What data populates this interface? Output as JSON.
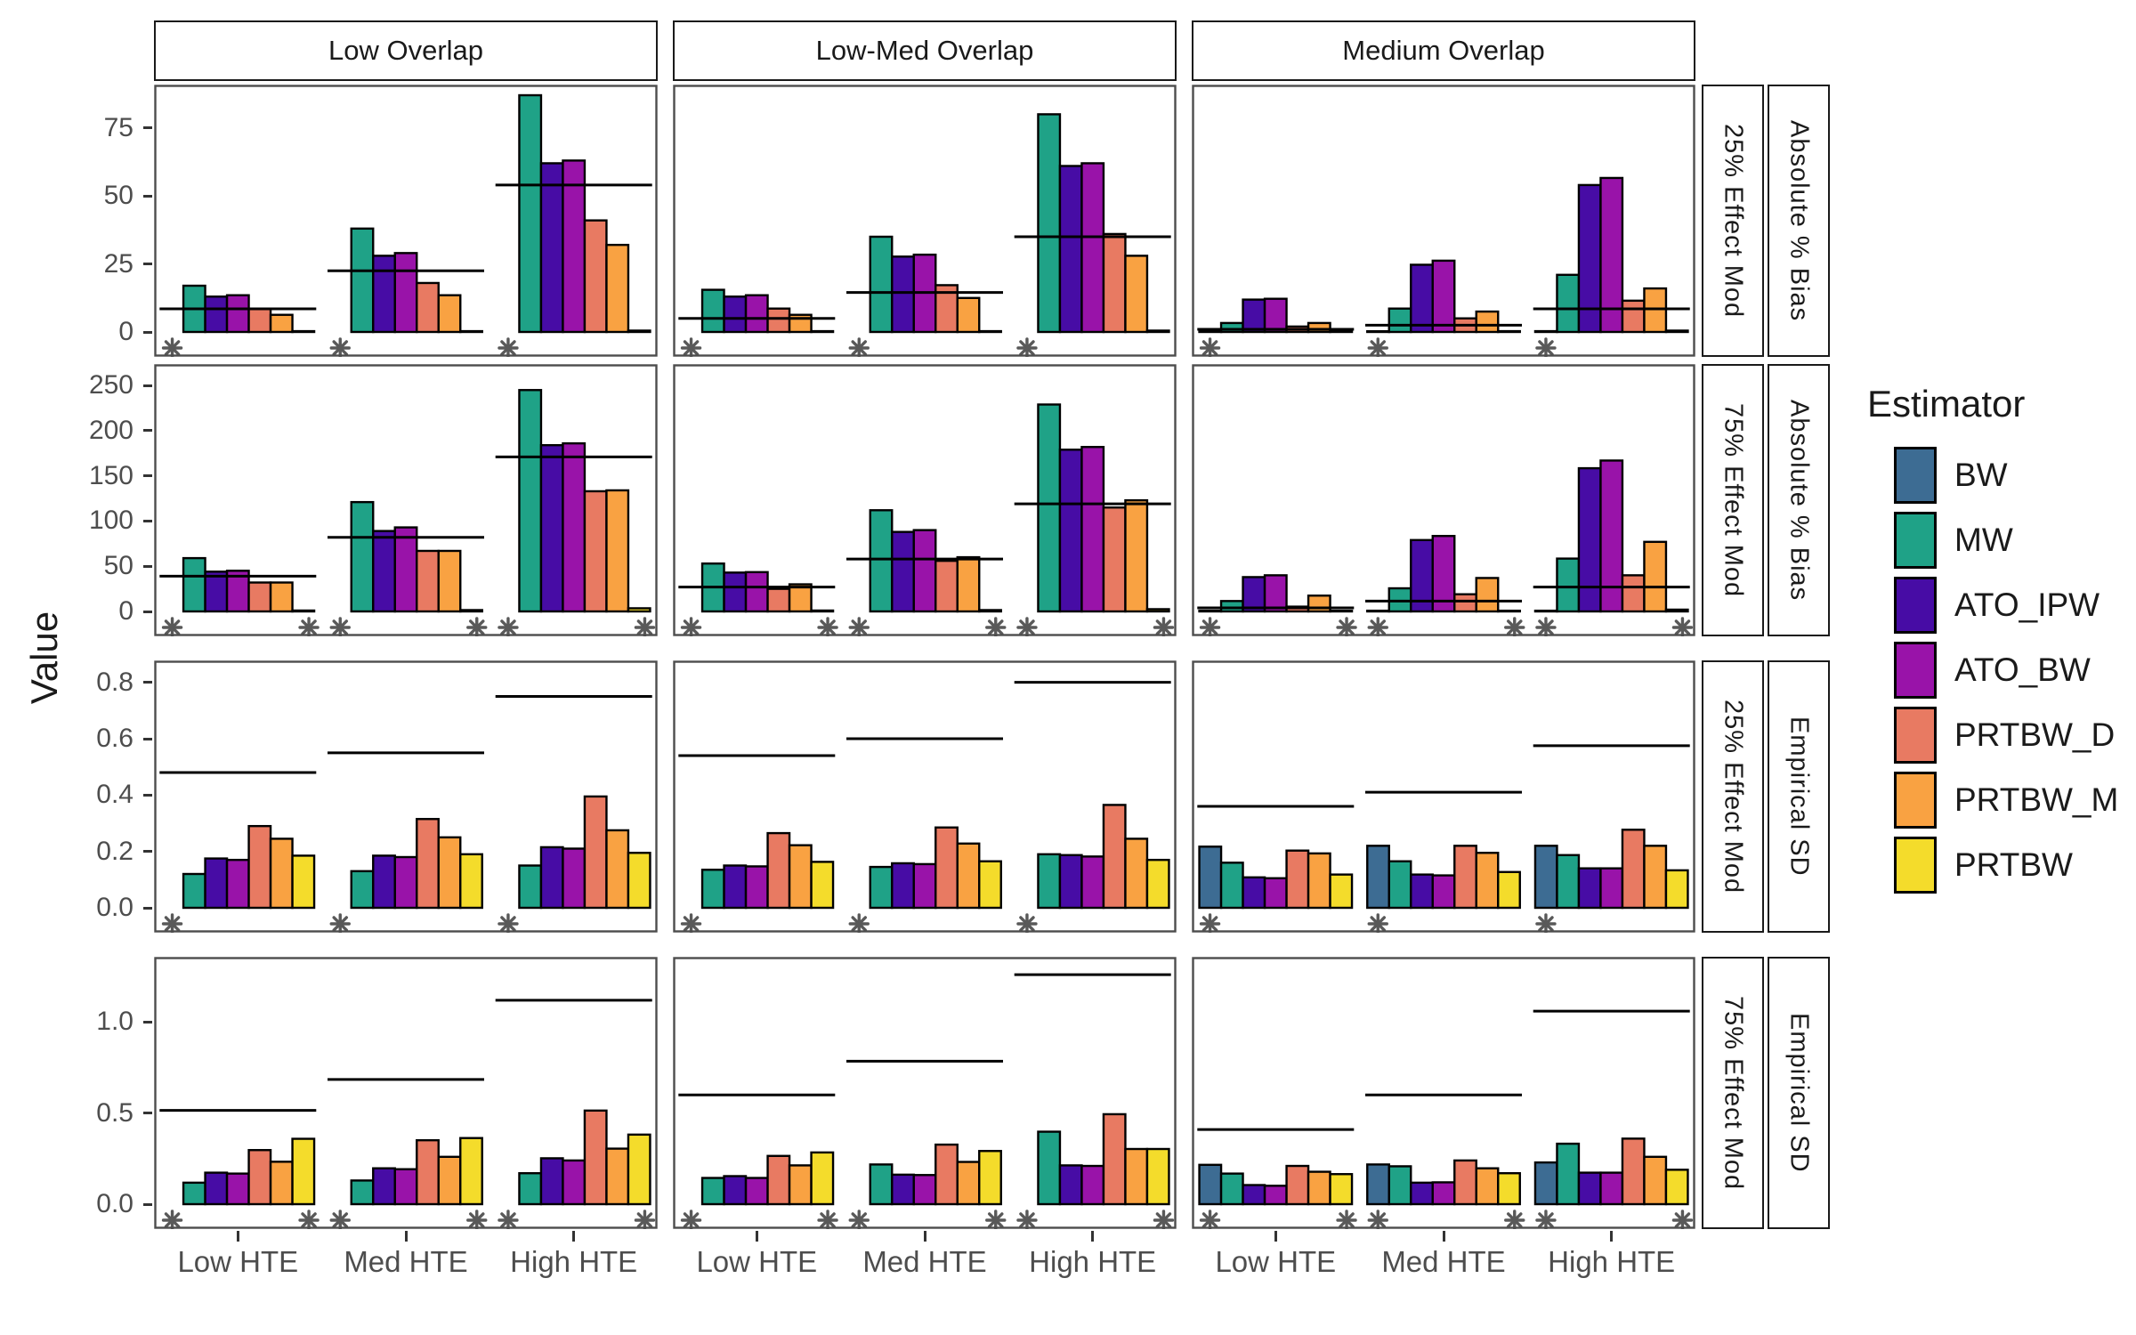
{
  "chart_data": {
    "type": "bar",
    "title": "",
    "ylabel": "Value",
    "legend_title": "Estimator",
    "columns": [
      "Low Overlap",
      "Low-Med Overlap",
      "Medium Overlap"
    ],
    "x_categories": [
      "Low HTE",
      "Med HTE",
      "High HTE"
    ],
    "estimators": [
      {
        "label": "BW",
        "color": "#3D6C93"
      },
      {
        "label": "MW",
        "color": "#1FA287"
      },
      {
        "label": "ATO_IPW",
        "color": "#470CA5"
      },
      {
        "label": "ATO_BW",
        "color": "#9913A9"
      },
      {
        "label": "PRTBW_D",
        "color": "#E87A62"
      },
      {
        "label": "PRTBW_M",
        "color": "#F9A242"
      },
      {
        "label": "PRTBW",
        "color": "#F4DC2B"
      }
    ],
    "note_marks": "asterisks flank groups: left mark all rows, right mark on 75% Effect Mod rows",
    "rows": [
      {
        "effect_mod": "25% Effect Mod",
        "metric": "Absolute % Bias",
        "ymax": 87,
        "asterisks": "left",
        "yticks": [
          {
            "v": 0,
            "label": "0"
          },
          {
            "v": 25,
            "label": "25"
          },
          {
            "v": 50,
            "label": "50"
          },
          {
            "v": 75,
            "label": "75"
          }
        ],
        "panels": [
          {
            "overlap": "Low Overlap",
            "groups": [
              {
                "x": "Low HTE",
                "values": [
                  null,
                  17,
                  13,
                  13.5,
                  8.5,
                  6.3,
                  0.3
                ],
                "ref": 8.5
              },
              {
                "x": "Med HTE",
                "values": [
                  null,
                  38,
                  28,
                  29,
                  18,
                  13.5,
                  0.3
                ],
                "ref": 22.5
              },
              {
                "x": "High HTE",
                "values": [
                  null,
                  87,
                  62,
                  63,
                  41,
                  32,
                  0.5
                ],
                "ref": 54
              }
            ]
          },
          {
            "overlap": "Low-Med Overlap",
            "groups": [
              {
                "x": "Low HTE",
                "values": [
                  null,
                  15.5,
                  13,
                  13.5,
                  8.6,
                  6.3,
                  0.3
                ],
                "ref": 5
              },
              {
                "x": "Med HTE",
                "values": [
                  null,
                  35,
                  27.7,
                  28.4,
                  17.2,
                  12.5,
                  0.3
                ],
                "ref": 14.5
              },
              {
                "x": "High HTE",
                "values": [
                  null,
                  80,
                  61,
                  62,
                  36,
                  28,
                  0.5
                ],
                "ref": 35
              }
            ]
          },
          {
            "overlap": "Medium Overlap",
            "groups": [
              {
                "x": "Low HTE",
                "values": [
                  0.2,
                  3.3,
                  11.9,
                  12.2,
                  2,
                  3.3,
                  0.2
                ],
                "ref": 1
              },
              {
                "x": "Med HTE",
                "values": [
                  0.2,
                  8.6,
                  24.7,
                  26.2,
                  5,
                  7.5,
                  0.3
                ],
                "ref": 2.5
              },
              {
                "x": "High HTE",
                "values": [
                  0.3,
                  21,
                  54,
                  56.6,
                  11.5,
                  16,
                  0.5
                ],
                "ref": 8.5
              }
            ]
          }
        ]
      },
      {
        "effect_mod": "75% Effect Mod",
        "metric": "Absolute % Bias",
        "ymax": 262,
        "asterisks": "both",
        "yticks": [
          {
            "v": 0,
            "label": "0"
          },
          {
            "v": 50,
            "label": "50"
          },
          {
            "v": 100,
            "label": "100"
          },
          {
            "v": 150,
            "label": "150"
          },
          {
            "v": 200,
            "label": "200"
          },
          {
            "v": 250,
            "label": "250"
          }
        ],
        "panels": [
          {
            "overlap": "Low Overlap",
            "groups": [
              {
                "x": "Low HTE",
                "values": [
                  null,
                  59,
                  44,
                  45,
                  32,
                  32,
                  1
                ],
                "ref": 39
              },
              {
                "x": "Med HTE",
                "values": [
                  null,
                  121,
                  89,
                  93,
                  67,
                  67,
                  1.5
                ],
                "ref": 82
              },
              {
                "x": "High HTE",
                "values": [
                  null,
                  245,
                  184,
                  186,
                  133,
                  134,
                  3.5
                ],
                "ref": 171
              }
            ]
          },
          {
            "overlap": "Low-Med Overlap",
            "groups": [
              {
                "x": "Low HTE",
                "values": [
                  null,
                  53,
                  43,
                  43.5,
                  25,
                  30,
                  1
                ],
                "ref": 27
              },
              {
                "x": "Med HTE",
                "values": [
                  null,
                  112,
                  88,
                  90,
                  56,
                  60,
                  1.5
                ],
                "ref": 58
              },
              {
                "x": "High HTE",
                "values": [
                  null,
                  229,
                  179,
                  182,
                  115,
                  123,
                  2.5
                ],
                "ref": 119
              }
            ]
          },
          {
            "overlap": "Medium Overlap",
            "groups": [
              {
                "x": "Low HTE",
                "values": [
                  0.3,
                  11.5,
                  38,
                  40,
                  5.3,
                  17.5,
                  0.3
                ],
                "ref": 4
              },
              {
                "x": "Med HTE",
                "values": [
                  0.4,
                  25.6,
                  79,
                  83.5,
                  19,
                  37,
                  0.5
                ],
                "ref": 11.5
              },
              {
                "x": "High HTE",
                "values": [
                  0.5,
                  58.5,
                  158.5,
                  167,
                  40,
                  77,
                  2
                ],
                "ref": 27
              }
            ]
          }
        ]
      },
      {
        "effect_mod": "25% Effect Mod",
        "metric": "Empirical SD",
        "ymax": 0.84,
        "asterisks": "left",
        "yticks": [
          {
            "v": 0,
            "label": "0.0"
          },
          {
            "v": 0.2,
            "label": "0.2"
          },
          {
            "v": 0.4,
            "label": "0.4"
          },
          {
            "v": 0.6,
            "label": "0.6"
          },
          {
            "v": 0.8,
            "label": "0.8"
          }
        ],
        "panels": [
          {
            "overlap": "Low Overlap",
            "groups": [
              {
                "x": "Low HTE",
                "values": [
                  null,
                  0.12,
                  0.175,
                  0.17,
                  0.29,
                  0.245,
                  0.185
                ],
                "ref": 0.48
              },
              {
                "x": "Med HTE",
                "values": [
                  null,
                  0.13,
                  0.185,
                  0.18,
                  0.315,
                  0.25,
                  0.19
                ],
                "ref": 0.55
              },
              {
                "x": "High HTE",
                "values": [
                  null,
                  0.15,
                  0.215,
                  0.21,
                  0.395,
                  0.275,
                  0.195
                ],
                "ref": 0.75
              }
            ]
          },
          {
            "overlap": "Low-Med Overlap",
            "groups": [
              {
                "x": "Low HTE",
                "values": [
                  null,
                  0.135,
                  0.15,
                  0.147,
                  0.265,
                  0.222,
                  0.163
                ],
                "ref": 0.54
              },
              {
                "x": "Med HTE",
                "values": [
                  null,
                  0.145,
                  0.158,
                  0.155,
                  0.285,
                  0.228,
                  0.165
                ],
                "ref": 0.6
              },
              {
                "x": "High HTE",
                "values": [
                  null,
                  0.19,
                  0.187,
                  0.182,
                  0.365,
                  0.245,
                  0.17
                ],
                "ref": 0.8
              }
            ]
          },
          {
            "overlap": "Medium Overlap",
            "groups": [
              {
                "x": "Low HTE",
                "values": [
                  0.217,
                  0.16,
                  0.108,
                  0.105,
                  0.203,
                  0.193,
                  0.118
                ],
                "ref": 0.36
              },
              {
                "x": "Med HTE",
                "values": [
                  0.22,
                  0.165,
                  0.118,
                  0.115,
                  0.22,
                  0.195,
                  0.127
                ],
                "ref": 0.41
              },
              {
                "x": "High HTE",
                "values": [
                  0.22,
                  0.187,
                  0.14,
                  0.14,
                  0.277,
                  0.22,
                  0.133
                ],
                "ref": 0.575
              }
            ]
          }
        ]
      },
      {
        "effect_mod": "75% Effect Mod",
        "metric": "Empirical SD",
        "ymax": 1.3,
        "asterisks": "both",
        "yticks": [
          {
            "v": 0,
            "label": "0.0"
          },
          {
            "v": 0.5,
            "label": "0.5"
          },
          {
            "v": 1.0,
            "label": "1.0"
          }
        ],
        "panels": [
          {
            "overlap": "Low Overlap",
            "groups": [
              {
                "x": "Low HTE",
                "values": [
                  null,
                  0.118,
                  0.173,
                  0.168,
                  0.297,
                  0.233,
                  0.359
                ],
                "ref": 0.515
              },
              {
                "x": "Med HTE",
                "values": [
                  null,
                  0.13,
                  0.197,
                  0.192,
                  0.351,
                  0.26,
                  0.363
                ],
                "ref": 0.685
              },
              {
                "x": "High HTE",
                "values": [
                  null,
                  0.17,
                  0.252,
                  0.24,
                  0.514,
                  0.305,
                  0.382
                ],
                "ref": 1.12
              }
            ]
          },
          {
            "overlap": "Low-Med Overlap",
            "groups": [
              {
                "x": "Low HTE",
                "values": [
                  null,
                  0.144,
                  0.154,
                  0.144,
                  0.265,
                  0.213,
                  0.284
                ],
                "ref": 0.6
              },
              {
                "x": "Med HTE",
                "values": [
                  null,
                  0.218,
                  0.162,
                  0.16,
                  0.327,
                  0.232,
                  0.292
                ],
                "ref": 0.785
              },
              {
                "x": "High HTE",
                "values": [
                  null,
                  0.398,
                  0.213,
                  0.21,
                  0.494,
                  0.303,
                  0.303
                ],
                "ref": 1.26
              }
            ]
          },
          {
            "overlap": "Medium Overlap",
            "groups": [
              {
                "x": "Low HTE",
                "values": [
                  0.216,
                  0.168,
                  0.105,
                  0.101,
                  0.21,
                  0.178,
                  0.165
                ],
                "ref": 0.41
              },
              {
                "x": "Med HTE",
                "values": [
                  0.218,
                  0.208,
                  0.118,
                  0.12,
                  0.24,
                  0.197,
                  0.17
                ],
                "ref": 0.6
              },
              {
                "x": "High HTE",
                "values": [
                  0.229,
                  0.332,
                  0.173,
                  0.173,
                  0.36,
                  0.26,
                  0.189
                ],
                "ref": 1.06
              }
            ]
          }
        ]
      }
    ]
  }
}
